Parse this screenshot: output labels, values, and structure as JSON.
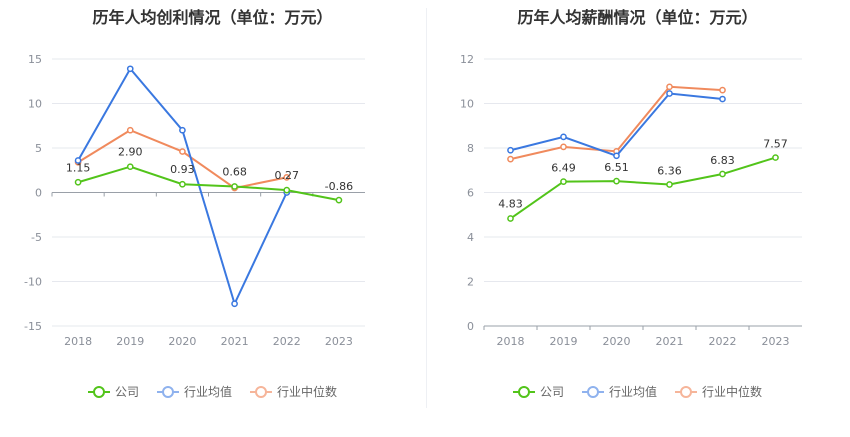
{
  "legend": {
    "company": "公司",
    "industry_avg": "行业均值",
    "industry_median": "行业中位数"
  },
  "colors": {
    "company": "#52c41a",
    "industry_avg": "#3a78e0",
    "industry_median": "#f08a5d",
    "company_legend": "#52c41a",
    "industry_avg_legend": "#8fb2ee",
    "industry_median_legend": "#f6b59a"
  },
  "chart_data": [
    {
      "type": "line",
      "title": "历年人均创利情况（单位：万元）",
      "categories": [
        "2018",
        "2019",
        "2020",
        "2021",
        "2022",
        "2023"
      ],
      "ylim": [
        -15,
        15
      ],
      "yticks": [
        15,
        10,
        5,
        0,
        -5,
        -10,
        -15
      ],
      "grid": true,
      "legend_position": "bottom",
      "series": [
        {
          "key": "company",
          "name": "公司",
          "values": [
            1.15,
            2.9,
            0.93,
            0.68,
            0.27,
            -0.86
          ],
          "labels": [
            "1.15",
            "2.90",
            "0.93",
            "0.68",
            "0.27",
            "-0.86"
          ]
        },
        {
          "key": "industry_avg",
          "name": "行业均值",
          "values": [
            3.6,
            13.9,
            7.0,
            -12.5,
            0.0,
            null
          ]
        },
        {
          "key": "industry_median",
          "name": "行业中位数",
          "values": [
            3.4,
            7.0,
            4.6,
            0.5,
            1.7,
            null
          ]
        }
      ]
    },
    {
      "type": "line",
      "title": "历年人均薪酬情况（单位：万元）",
      "categories": [
        "2018",
        "2019",
        "2020",
        "2021",
        "2022",
        "2023"
      ],
      "ylim": [
        0,
        12
      ],
      "yticks": [
        12,
        10,
        8,
        6,
        4,
        2,
        0
      ],
      "grid": true,
      "legend_position": "bottom",
      "series": [
        {
          "key": "company",
          "name": "公司",
          "values": [
            4.83,
            6.49,
            6.51,
            6.36,
            6.83,
            7.57
          ],
          "labels": [
            "4.83",
            "6.49",
            "6.51",
            "6.36",
            "6.83",
            "7.57"
          ]
        },
        {
          "key": "industry_avg",
          "name": "行业均值",
          "values": [
            7.9,
            8.5,
            7.65,
            10.45,
            10.2,
            null
          ]
        },
        {
          "key": "industry_median",
          "name": "行业中位数",
          "values": [
            7.5,
            8.05,
            7.85,
            10.75,
            10.6,
            null
          ]
        }
      ]
    }
  ]
}
